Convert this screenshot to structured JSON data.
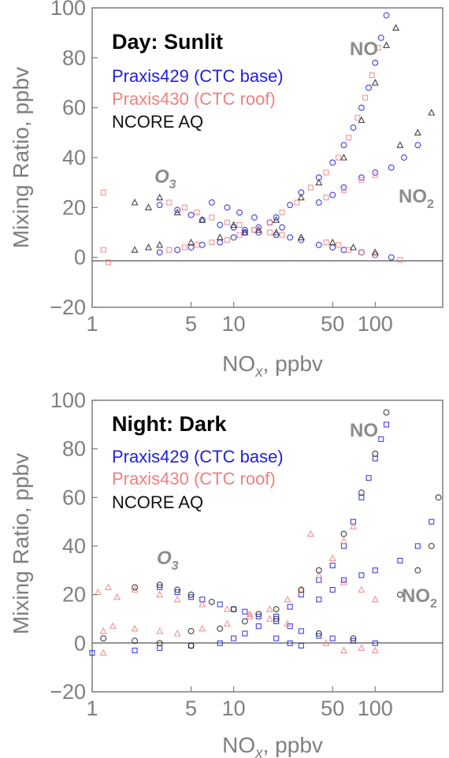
{
  "colors": {
    "praxis429": "#1f1fe0",
    "praxis430": "#f08080",
    "ncore": "#222222",
    "axis": "#7f7f7f"
  },
  "chart_data": [
    {
      "type": "scatter",
      "title": "Day: Sunlit",
      "xlabel": "NOx, ppbv",
      "xlabel_main": "NO",
      "xlabel_sub": "x",
      "xlabel_rest": ", ppbv",
      "ylabel": "Mixing Ratio, ppbv",
      "xscale": "log",
      "xlim": [
        1,
        300
      ],
      "ylim": [
        -20,
        100
      ],
      "xticks": [
        1,
        5,
        10,
        50,
        100
      ],
      "xtick_labels": [
        "1",
        "5",
        "10",
        "50",
        "100"
      ],
      "yticks": [
        -20,
        0,
        20,
        40,
        60,
        80,
        100
      ],
      "ytick_labels": [
        "−20",
        "0",
        "20",
        "40",
        "60",
        "80",
        "100"
      ],
      "legend": [
        "Praxis429 (CTC base)",
        "Praxis430 (CTC roof)",
        "NCORE AQ"
      ],
      "annotations": [
        {
          "main": "NO",
          "sub": ""
        },
        {
          "main": "O",
          "sub": "3"
        },
        {
          "main": "NO",
          "sub": "2"
        }
      ],
      "series": [
        {
          "name": "Praxis429 (CTC base)",
          "points": [
            [
              3,
              21
            ],
            [
              4,
              19
            ],
            [
              5,
              17
            ],
            [
              6,
              15
            ],
            [
              8,
              13
            ],
            [
              10,
              12
            ],
            [
              12,
              11
            ],
            [
              15,
              10
            ],
            [
              20,
              9
            ],
            [
              25,
              8
            ],
            [
              30,
              7
            ],
            [
              3,
              2
            ],
            [
              4,
              3
            ],
            [
              5,
              4
            ],
            [
              6,
              5
            ],
            [
              8,
              6
            ],
            [
              10,
              8
            ],
            [
              12,
              10
            ],
            [
              15,
              12
            ],
            [
              20,
              16
            ],
            [
              25,
              21
            ],
            [
              30,
              26
            ],
            [
              40,
              32
            ],
            [
              50,
              38
            ],
            [
              60,
              45
            ],
            [
              70,
              52
            ],
            [
              80,
              60
            ],
            [
              90,
              68
            ],
            [
              100,
              78
            ],
            [
              110,
              88
            ],
            [
              120,
              97
            ],
            [
              40,
              5
            ],
            [
              50,
              4
            ],
            [
              60,
              3
            ],
            [
              80,
              2
            ],
            [
              100,
              1
            ],
            [
              130,
              0
            ],
            [
              40,
              22
            ],
            [
              50,
              25
            ],
            [
              60,
              28
            ],
            [
              80,
              32
            ],
            [
              100,
              34
            ],
            [
              130,
              36
            ],
            [
              160,
              40
            ],
            [
              200,
              45
            ],
            [
              7,
              22
            ],
            [
              9,
              20
            ],
            [
              11,
              18
            ],
            [
              14,
              16
            ],
            [
              18,
              14
            ],
            [
              22,
              12
            ]
          ]
        },
        {
          "name": "Praxis430 (CTC roof)",
          "points": [
            [
              1.2,
              26
            ],
            [
              1.2,
              3
            ],
            [
              1.3,
              -2
            ],
            [
              3.5,
              22
            ],
            [
              4.5,
              20
            ],
            [
              5.5,
              18
            ],
            [
              7,
              16
            ],
            [
              9,
              14
            ],
            [
              11,
              13
            ],
            [
              14,
              11
            ],
            [
              18,
              10
            ],
            [
              22,
              9
            ],
            [
              3.5,
              3
            ],
            [
              4.5,
              4
            ],
            [
              5.5,
              5
            ],
            [
              7,
              6
            ],
            [
              9,
              7
            ],
            [
              11,
              9
            ],
            [
              14,
              11
            ],
            [
              18,
              14
            ],
            [
              22,
              18
            ],
            [
              28,
              22
            ],
            [
              35,
              28
            ],
            [
              45,
              34
            ],
            [
              55,
              40
            ],
            [
              65,
              48
            ],
            [
              75,
              56
            ],
            [
              85,
              64
            ],
            [
              95,
              73
            ],
            [
              105,
              84
            ],
            [
              45,
              6
            ],
            [
              55,
              5
            ],
            [
              65,
              3
            ],
            [
              80,
              2
            ],
            [
              100,
              1
            ],
            [
              45,
              24
            ],
            [
              60,
              27
            ],
            [
              80,
              31
            ],
            [
              100,
              33
            ],
            [
              150,
              -1
            ]
          ]
        },
        {
          "name": "NCORE AQ",
          "points": [
            [
              2,
              22
            ],
            [
              2.5,
              20
            ],
            [
              3,
              24
            ],
            [
              4,
              18
            ],
            [
              6,
              15
            ],
            [
              10,
              13
            ],
            [
              15,
              11
            ],
            [
              20,
              10
            ],
            [
              30,
              8
            ],
            [
              2,
              3
            ],
            [
              2.5,
              4
            ],
            [
              3,
              5
            ],
            [
              5,
              6
            ],
            [
              8,
              8
            ],
            [
              12,
              10
            ],
            [
              20,
              15
            ],
            [
              30,
              24
            ],
            [
              40,
              30
            ],
            [
              60,
              40
            ],
            [
              80,
              55
            ],
            [
              100,
              70
            ],
            [
              120,
              85
            ],
            [
              140,
              92
            ],
            [
              150,
              45
            ],
            [
              200,
              50
            ],
            [
              250,
              58
            ],
            [
              50,
              6
            ],
            [
              70,
              4
            ],
            [
              100,
              2
            ]
          ]
        }
      ]
    },
    {
      "type": "scatter",
      "title": "Night: Dark",
      "xlabel": "NOx, ppbv",
      "xlabel_main": "NO",
      "xlabel_sub": "x",
      "xlabel_rest": ", ppbv",
      "ylabel": "Mixing Ratio, ppbv",
      "xscale": "log",
      "xlim": [
        1,
        300
      ],
      "ylim": [
        -20,
        100
      ],
      "xticks": [
        1,
        5,
        10,
        50,
        100
      ],
      "xtick_labels": [
        "1",
        "5",
        "10",
        "50",
        "100"
      ],
      "yticks": [
        -20,
        0,
        20,
        40,
        60,
        80,
        100
      ],
      "ytick_labels": [
        "−20",
        "0",
        "20",
        "40",
        "60",
        "80",
        "100"
      ],
      "legend": [
        "Praxis429 (CTC base)",
        "Praxis430 (CTC roof)",
        "NCORE AQ"
      ],
      "annotations": [
        {
          "main": "NO",
          "sub": ""
        },
        {
          "main": "O",
          "sub": "3"
        },
        {
          "main": "NO",
          "sub": "2"
        }
      ],
      "series": [
        {
          "name": "Praxis429 (CTC base)",
          "points": [
            [
              3,
              23
            ],
            [
              4,
              21
            ],
            [
              5,
              19
            ],
            [
              6,
              18
            ],
            [
              8,
              16
            ],
            [
              10,
              14
            ],
            [
              12,
              13
            ],
            [
              15,
              11
            ],
            [
              20,
              9
            ],
            [
              25,
              7
            ],
            [
              30,
              5
            ],
            [
              40,
              3
            ],
            [
              50,
              2
            ],
            [
              70,
              1
            ],
            [
              100,
              0
            ],
            [
              1,
              -4
            ],
            [
              2,
              -3
            ],
            [
              3,
              -2
            ],
            [
              5,
              -1
            ],
            [
              8,
              0
            ],
            [
              10,
              2
            ],
            [
              12,
              4
            ],
            [
              15,
              7
            ],
            [
              20,
              11
            ],
            [
              25,
              15
            ],
            [
              30,
              20
            ],
            [
              40,
              26
            ],
            [
              50,
              32
            ],
            [
              60,
              40
            ],
            [
              70,
              50
            ],
            [
              80,
              60
            ],
            [
              90,
              68
            ],
            [
              100,
              76
            ],
            [
              110,
              84
            ],
            [
              120,
              90
            ],
            [
              40,
              18
            ],
            [
              50,
              22
            ],
            [
              60,
              26
            ],
            [
              80,
              28
            ],
            [
              100,
              30
            ],
            [
              150,
              34
            ],
            [
              200,
              40
            ],
            [
              250,
              50
            ],
            [
              20,
              2
            ],
            [
              25,
              0
            ],
            [
              30,
              -1
            ]
          ]
        },
        {
          "name": "Praxis430 (CTC roof)",
          "points": [
            [
              1.1,
              21
            ],
            [
              1.3,
              23
            ],
            [
              1.5,
              19
            ],
            [
              1.2,
              5
            ],
            [
              1.4,
              7
            ],
            [
              1.2,
              -4
            ],
            [
              2,
              22
            ],
            [
              3,
              20
            ],
            [
              4,
              18
            ],
            [
              6,
              16
            ],
            [
              9,
              14
            ],
            [
              13,
              12
            ],
            [
              18,
              10
            ],
            [
              24,
              8
            ],
            [
              2,
              6
            ],
            [
              3,
              5
            ],
            [
              4,
              4
            ],
            [
              6,
              6
            ],
            [
              9,
              8
            ],
            [
              13,
              11
            ],
            [
              18,
              14
            ],
            [
              24,
              18
            ],
            [
              30,
              22
            ],
            [
              40,
              28
            ],
            [
              50,
              35
            ],
            [
              60,
              42
            ],
            [
              70,
              48
            ],
            [
              35,
              45
            ],
            [
              45,
              0
            ],
            [
              60,
              -3
            ],
            [
              80,
              -2
            ],
            [
              100,
              -3
            ],
            [
              60,
              25
            ],
            [
              80,
              22
            ],
            [
              100,
              18
            ]
          ]
        },
        {
          "name": "NCORE AQ",
          "points": [
            [
              1.2,
              2
            ],
            [
              2,
              1
            ],
            [
              3,
              0
            ],
            [
              5,
              -1
            ],
            [
              2,
              23
            ],
            [
              3,
              24
            ],
            [
              4,
              22
            ],
            [
              5,
              20
            ],
            [
              7,
              17
            ],
            [
              10,
              14
            ],
            [
              15,
              12
            ],
            [
              20,
              10
            ],
            [
              5,
              5
            ],
            [
              8,
              6
            ],
            [
              12,
              9
            ],
            [
              20,
              14
            ],
            [
              30,
              22
            ],
            [
              40,
              30
            ],
            [
              60,
              45
            ],
            [
              80,
              62
            ],
            [
              100,
              78
            ],
            [
              120,
              95
            ],
            [
              150,
              20
            ],
            [
              200,
              30
            ],
            [
              250,
              40
            ],
            [
              280,
              60
            ],
            [
              40,
              4
            ],
            [
              70,
              2
            ]
          ]
        }
      ]
    }
  ]
}
